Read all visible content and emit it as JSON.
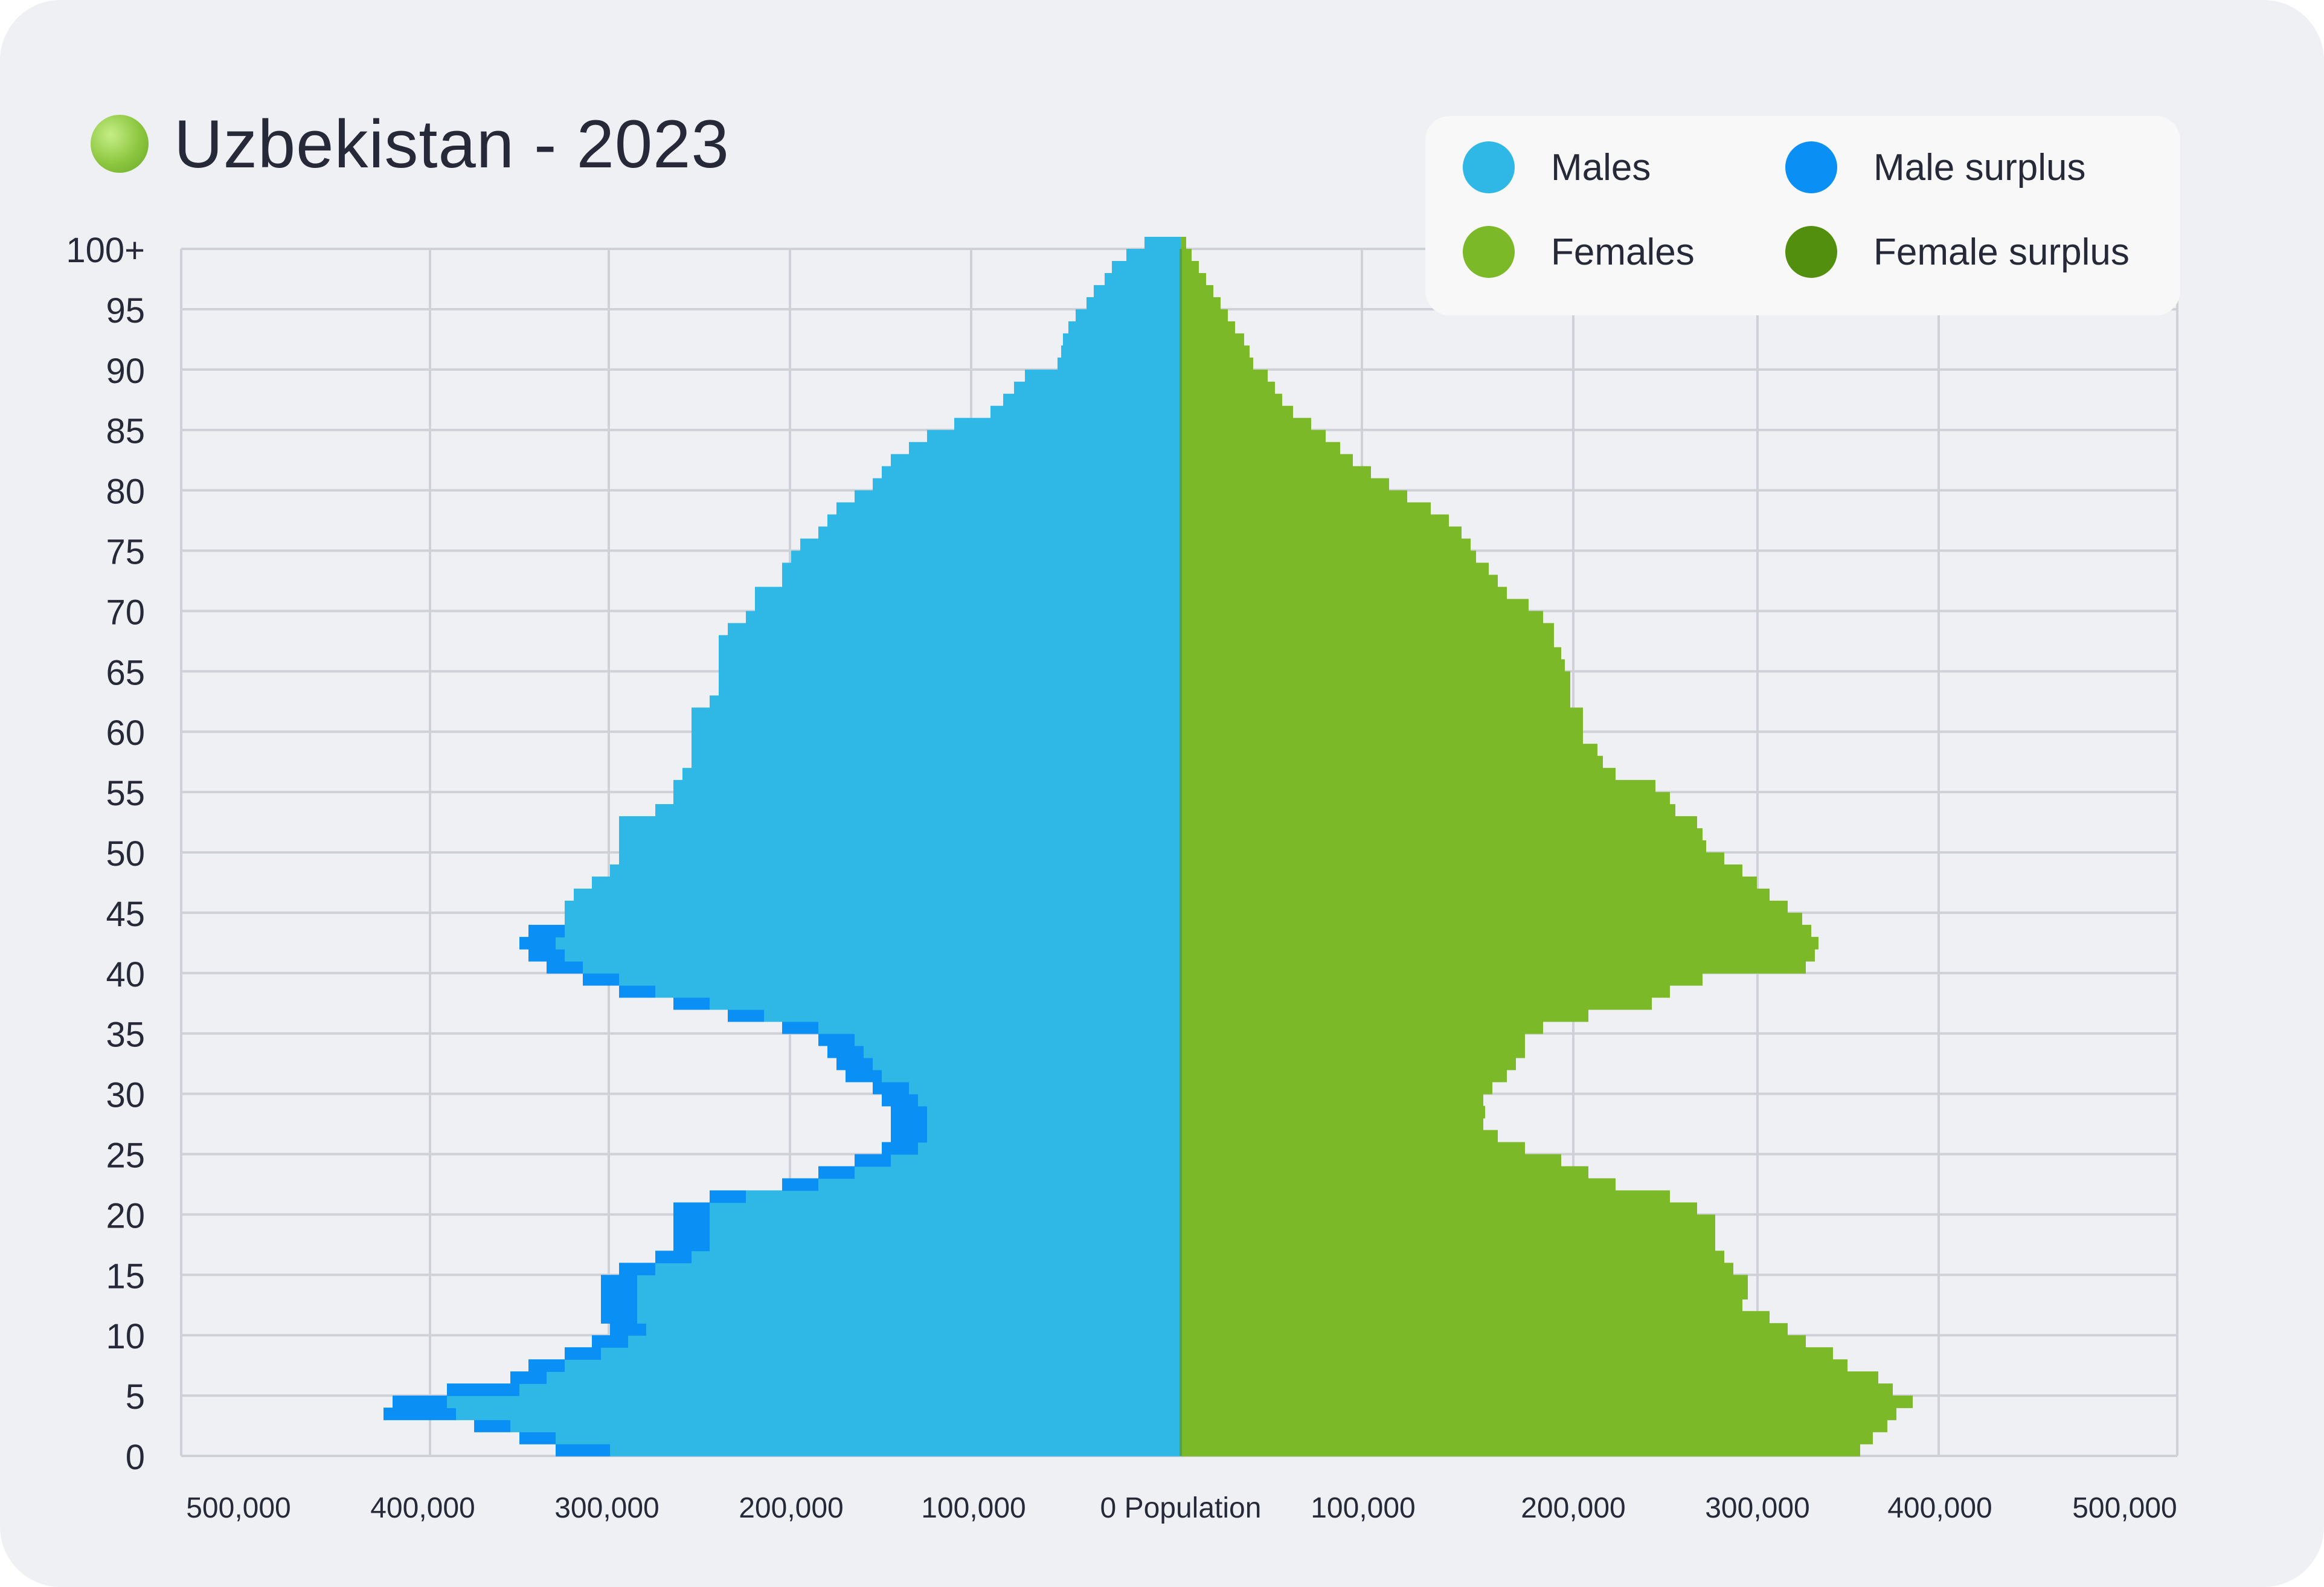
{
  "title": "Uzbekistan - 2023",
  "legend": [
    {
      "label": "Males",
      "color": "#2fb8e6"
    },
    {
      "label": "Male surplus",
      "color": "#0a90f5"
    },
    {
      "label": "Females",
      "color": "#7cb928"
    },
    {
      "label": "Female surplus",
      "color": "#528f0e"
    }
  ],
  "chart_data": {
    "type": "bar",
    "orientation": "horizontal-population-pyramid",
    "title": "Uzbekistan - 2023",
    "xlabel": "Population",
    "x_tick_labels_left": [
      "500,000",
      "400,000",
      "300,000",
      "200,000",
      "100,000"
    ],
    "x_tick_labels_right": [
      "100,000",
      "200,000",
      "300,000",
      "400,000",
      "500,000"
    ],
    "x_center_label": "0 Population",
    "y_tick_labels": [
      "0",
      "5",
      "10",
      "15",
      "20",
      "25",
      "30",
      "35",
      "40",
      "45",
      "50",
      "55",
      "60",
      "65",
      "70",
      "75",
      "80",
      "85",
      "90",
      "95",
      "100+"
    ],
    "xlim": [
      -550000,
      550000
    ],
    "age_groups": [
      0,
      1,
      2,
      3,
      4,
      5,
      6,
      7,
      8,
      9,
      10,
      11,
      12,
      13,
      14,
      15,
      16,
      17,
      18,
      19,
      20,
      21,
      22,
      23,
      24,
      25,
      26,
      27,
      28,
      29,
      30,
      31,
      32,
      33,
      34,
      35,
      36,
      37,
      38,
      39,
      40,
      41,
      42,
      43,
      44,
      45,
      46,
      47,
      48,
      49,
      50,
      51,
      52,
      53,
      54,
      55,
      56,
      57,
      58,
      59,
      60,
      61,
      62,
      63,
      64,
      65,
      66,
      67,
      68,
      69,
      70,
      71,
      72,
      73,
      74,
      75,
      76,
      77,
      78,
      79,
      80,
      81,
      82,
      83,
      84,
      85,
      86,
      87,
      88,
      89,
      90,
      91,
      92,
      93,
      94,
      95,
      96,
      97,
      98,
      99,
      100
    ],
    "series": [
      {
        "name": "Males",
        "values": [
          315000,
          345000,
          370000,
          400000,
          405000,
          365000,
          350000,
          340000,
          320000,
          305000,
          295000,
          300000,
          300000,
          300000,
          300000,
          290000,
          270000,
          260000,
          260000,
          260000,
          260000,
          240000,
          200000,
          180000,
          160000,
          145000,
          140000,
          140000,
          140000,
          145000,
          150000,
          165000,
          170000,
          175000,
          180000,
          200000,
          230000,
          260000,
          290000,
          310000,
          330000,
          340000,
          345000,
          340000,
          340000,
          340000,
          335000,
          325000,
          315000,
          310000,
          310000,
          310000,
          310000,
          290000,
          280000,
          280000,
          275000,
          270000,
          270000,
          270000,
          270000,
          270000,
          260000,
          255000,
          255000,
          255000,
          255000,
          255000,
          250000,
          240000,
          235000,
          235000,
          220000,
          220000,
          215000,
          210000,
          200000,
          195000,
          190000,
          180000,
          170000,
          165000,
          160000,
          150000,
          140000,
          125000,
          105000,
          98000,
          92000,
          86000,
          68000,
          66000,
          65000,
          62000,
          58000,
          52000,
          48000,
          42000,
          38000,
          30000,
          20000
        ]
      },
      {
        "name": "Females",
        "values": [
          375000,
          382000,
          390000,
          395000,
          404000,
          393000,
          385000,
          368000,
          360000,
          345000,
          335000,
          325000,
          310000,
          313000,
          313000,
          305000,
          300000,
          295000,
          295000,
          295000,
          285000,
          270000,
          240000,
          225000,
          210000,
          190000,
          175000,
          167000,
          168000,
          167000,
          172000,
          180000,
          185000,
          190000,
          190000,
          200000,
          225000,
          260000,
          270000,
          288000,
          345000,
          350000,
          352000,
          348000,
          343000,
          335000,
          325000,
          318000,
          310000,
          300000,
          290000,
          288000,
          285000,
          273000,
          270000,
          262000,
          240000,
          233000,
          230000,
          222000,
          222000,
          222000,
          215000,
          215000,
          215000,
          212000,
          210000,
          206000,
          206000,
          200000,
          192000,
          180000,
          175000,
          170000,
          163000,
          160000,
          155000,
          148000,
          138000,
          125000,
          115000,
          105000,
          95000,
          88000,
          80000,
          72000,
          62000,
          56000,
          52000,
          48000,
          40000,
          38000,
          35000,
          30000,
          26000,
          22000,
          18000,
          14000,
          10000,
          6000,
          3000
        ]
      },
      {
        "name": "Male surplus",
        "values": [
          30000,
          20000,
          20000,
          40000,
          30000,
          40000,
          20000,
          20000,
          20000,
          20000,
          20000,
          20000,
          20000,
          20000,
          20000,
          20000,
          20000,
          20000,
          20000,
          20000,
          20000,
          20000,
          20000,
          20000,
          20000,
          20000,
          20000,
          20000,
          20000,
          20000,
          20000,
          20000,
          20000,
          20000,
          20000,
          20000,
          20000,
          20000,
          20000,
          20000,
          20000,
          20000,
          20000,
          20000,
          0,
          0,
          0,
          0,
          0,
          0,
          0,
          0,
          0,
          0,
          0,
          0,
          0,
          0,
          0,
          0,
          0,
          0,
          0,
          0,
          0,
          0,
          0,
          0,
          0,
          0,
          0,
          0,
          0,
          0,
          0,
          0,
          0,
          0,
          0,
          0,
          0,
          0,
          0,
          0,
          0,
          0,
          0,
          0,
          0,
          0,
          0,
          0,
          0,
          0,
          0,
          0,
          0,
          0,
          0,
          0,
          0
        ]
      },
      {
        "name": "Female surplus",
        "values": [
          0,
          0,
          0,
          0,
          0,
          0,
          0,
          0,
          0,
          0,
          0,
          0,
          0,
          0,
          0,
          0,
          0,
          0,
          0,
          0,
          0,
          0,
          0,
          0,
          0,
          0,
          0,
          0,
          0,
          0,
          0,
          0,
          0,
          0,
          0,
          0,
          0,
          0,
          0,
          0,
          0,
          0,
          0,
          0,
          0,
          0,
          0,
          0,
          0,
          0,
          0,
          0,
          0,
          0,
          0,
          0,
          0,
          0,
          0,
          0,
          0,
          0,
          0,
          0,
          0,
          0,
          0,
          0,
          0,
          0,
          0,
          0,
          0,
          0,
          0,
          0,
          0,
          0,
          0,
          0,
          0,
          0,
          0,
          0,
          0,
          0,
          0,
          0,
          0,
          0,
          0,
          0,
          0,
          0,
          0,
          0,
          0,
          0,
          0,
          0,
          0
        ]
      }
    ],
    "grid": true,
    "legend_position": "top-right"
  }
}
